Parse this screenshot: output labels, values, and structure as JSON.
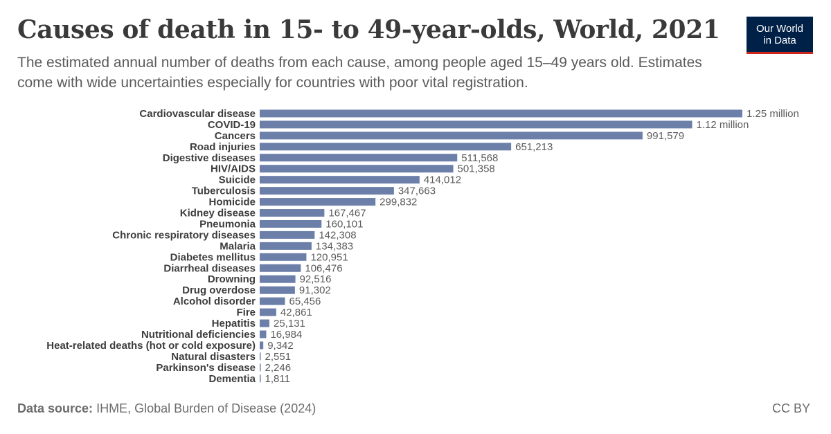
{
  "header": {
    "title": "Causes of death in 15- to 49-year-olds, World, 2021",
    "subtitle": "The estimated annual number of deaths from each cause, among people aged 15–49 years old. Estimates come with wide uncertainties especially for countries with poor vital registration.",
    "logo_line1": "Our World",
    "logo_line2": "in Data"
  },
  "footer": {
    "source_label": "Data source:",
    "source_text": "IHME, Global Burden of Disease (2024)",
    "license": "CC BY"
  },
  "colors": {
    "bar": "#6b7fa8",
    "logo_bg": "#002147",
    "logo_accent": "#ce261e"
  },
  "chart_data": {
    "type": "bar",
    "orientation": "horizontal",
    "categories": [
      "Cardiovascular disease",
      "COVID-19",
      "Cancers",
      "Road injuries",
      "Digestive diseases",
      "HIV/AIDS",
      "Suicide",
      "Tuberculosis",
      "Homicide",
      "Kidney disease",
      "Pneumonia",
      "Chronic respiratory diseases",
      "Malaria",
      "Diabetes mellitus",
      "Diarrheal diseases",
      "Drowning",
      "Drug overdose",
      "Alcohol disorder",
      "Fire",
      "Hepatitis",
      "Nutritional deficiencies",
      "Heat-related deaths (hot or cold exposure)",
      "Natural disasters",
      "Parkinson's disease",
      "Dementia"
    ],
    "values": [
      1250000,
      1120000,
      991579,
      651213,
      511568,
      501358,
      414012,
      347663,
      299832,
      167467,
      160101,
      142308,
      134383,
      120951,
      106476,
      92516,
      91302,
      65456,
      42861,
      25131,
      16984,
      9342,
      2551,
      2246,
      1811
    ],
    "value_labels": [
      "1.25 million",
      "1.12 million",
      "991,579",
      "651,213",
      "511,568",
      "501,358",
      "414,012",
      "347,663",
      "299,832",
      "167,467",
      "160,101",
      "142,308",
      "134,383",
      "120,951",
      "106,476",
      "92,516",
      "91,302",
      "65,456",
      "42,861",
      "25,131",
      "16,984",
      "9,342",
      "2,551",
      "2,246",
      "1,811"
    ],
    "xlim": [
      0,
      1250000
    ],
    "grid": false,
    "legend": "none"
  }
}
